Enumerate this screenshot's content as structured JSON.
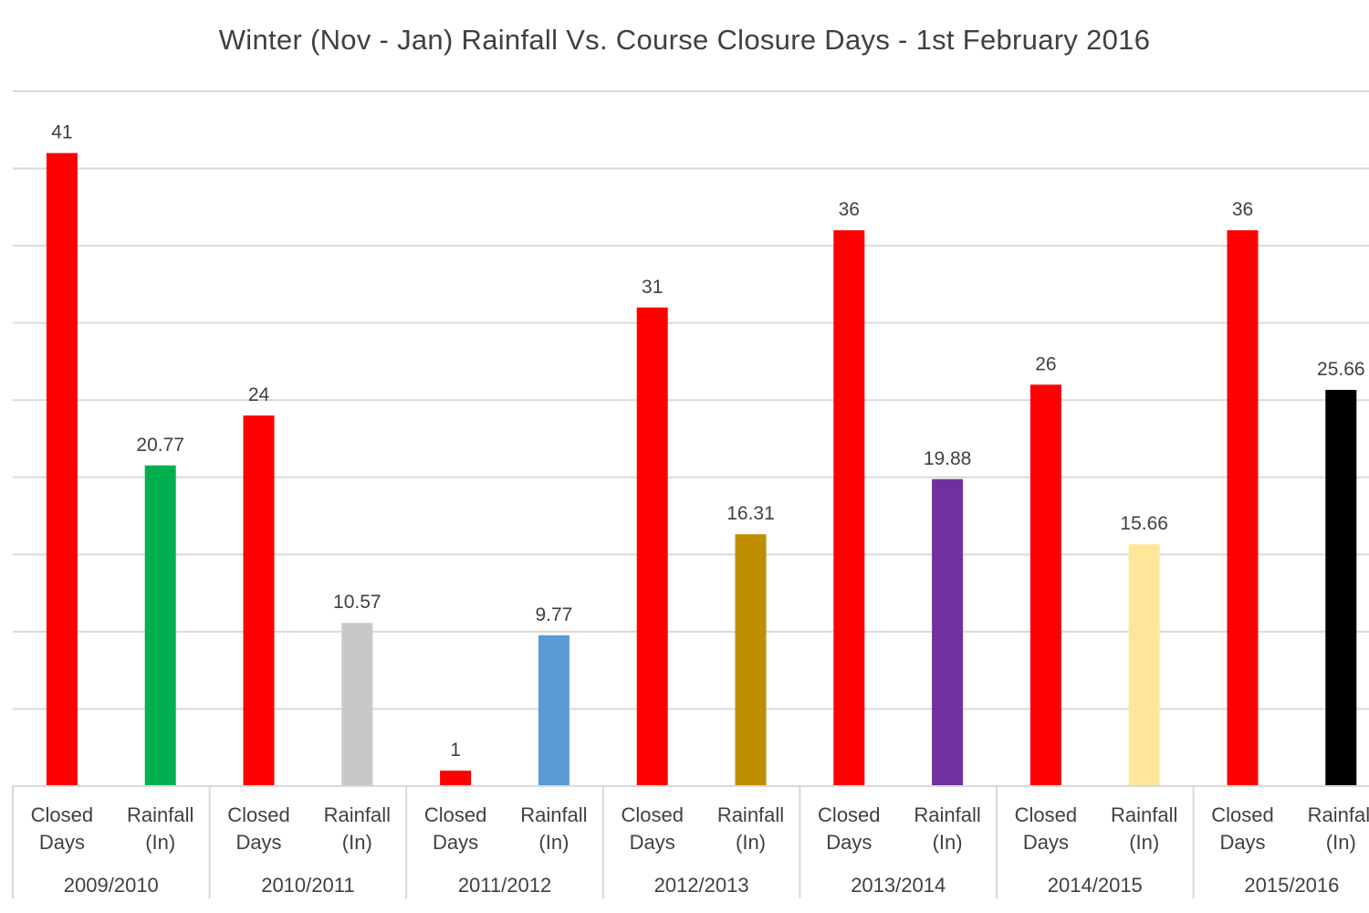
{
  "chart_data": {
    "type": "bar",
    "title": "Winter (Nov - Jan) Rainfall Vs. Course Closure Days - 1st February 2016",
    "groups": [
      "2009/2010",
      "2010/2011",
      "2011/2012",
      "2012/2013",
      "2013/2014",
      "2014/2015",
      "2015/2016"
    ],
    "sub_categories": [
      [
        "Closed",
        "Days"
      ],
      [
        "Rainfall",
        "(In)"
      ]
    ],
    "bars": [
      {
        "group": "2009/2010",
        "sub": "Closed Days",
        "value": 41,
        "label": "41",
        "color": "#ff0000"
      },
      {
        "group": "2009/2010",
        "sub": "Rainfall (In)",
        "value": 20.77,
        "label": "20.77",
        "color": "#00b050"
      },
      {
        "group": "2010/2011",
        "sub": "Closed Days",
        "value": 24,
        "label": "24",
        "color": "#ff0000"
      },
      {
        "group": "2010/2011",
        "sub": "Rainfall (In)",
        "value": 10.57,
        "label": "10.57",
        "color": "#c8c8c8"
      },
      {
        "group": "2011/2012",
        "sub": "Closed Days",
        "value": 1,
        "label": "1",
        "color": "#ff0000"
      },
      {
        "group": "2011/2012",
        "sub": "Rainfall (In)",
        "value": 9.77,
        "label": "9.77",
        "color": "#5b9bd5"
      },
      {
        "group": "2012/2013",
        "sub": "Closed Days",
        "value": 31,
        "label": "31",
        "color": "#ff0000"
      },
      {
        "group": "2012/2013",
        "sub": "Rainfall (In)",
        "value": 16.31,
        "label": "16.31",
        "color": "#bf8f00"
      },
      {
        "group": "2013/2014",
        "sub": "Closed Days",
        "value": 36,
        "label": "36",
        "color": "#ff0000"
      },
      {
        "group": "2013/2014",
        "sub": "Rainfall (In)",
        "value": 19.88,
        "label": "19.88",
        "color": "#7030a0"
      },
      {
        "group": "2014/2015",
        "sub": "Closed Days",
        "value": 26,
        "label": "26",
        "color": "#ff0000"
      },
      {
        "group": "2014/2015",
        "sub": "Rainfall (In)",
        "value": 15.66,
        "label": "15.66",
        "color": "#ffe699"
      },
      {
        "group": "2015/2016",
        "sub": "Closed Days",
        "value": 36,
        "label": "36",
        "color": "#ff0000"
      },
      {
        "group": "2015/2016",
        "sub": "Rainfall (In)",
        "value": 25.66,
        "label": "25.66",
        "color": "#000000"
      }
    ],
    "ylim": [
      0,
      45
    ],
    "grid_step": 5,
    "grid": true,
    "y_axis_labels_visible": false,
    "legend": "none"
  }
}
